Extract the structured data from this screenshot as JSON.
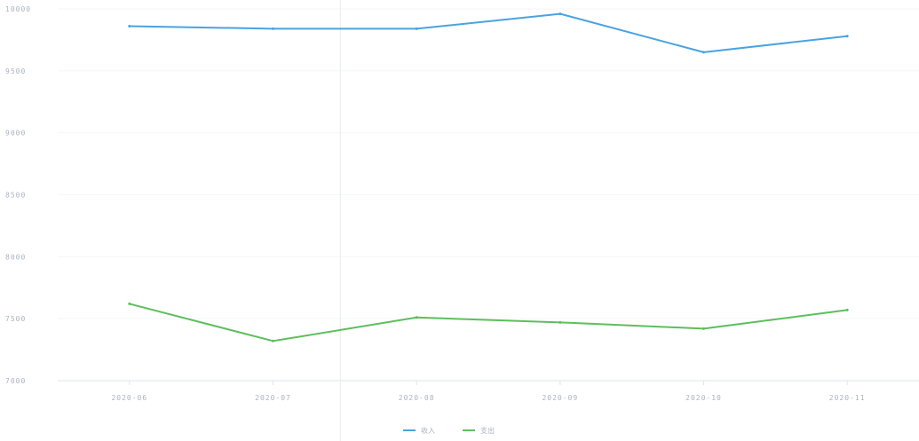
{
  "chart_data": {
    "type": "line",
    "categories": [
      "2020-06",
      "2020-07",
      "2020-08",
      "2020-09",
      "2020-10",
      "2020-11"
    ],
    "series": [
      {
        "name": "收入",
        "color": "#4aa3df",
        "values": [
          9860,
          9840,
          9840,
          9960,
          9650,
          9780
        ]
      },
      {
        "name": "支出",
        "color": "#5cbf5c",
        "values": [
          7620,
          7320,
          7510,
          7470,
          7420,
          7570
        ]
      }
    ],
    "ylim": [
      7000,
      10000
    ],
    "yticks": [
      "7000",
      "7500",
      "8000",
      "8500",
      "9000",
      "9500",
      "10000"
    ],
    "xlabel": "",
    "ylabel": "",
    "grid": "horizontal",
    "legend": "bottom-center"
  }
}
